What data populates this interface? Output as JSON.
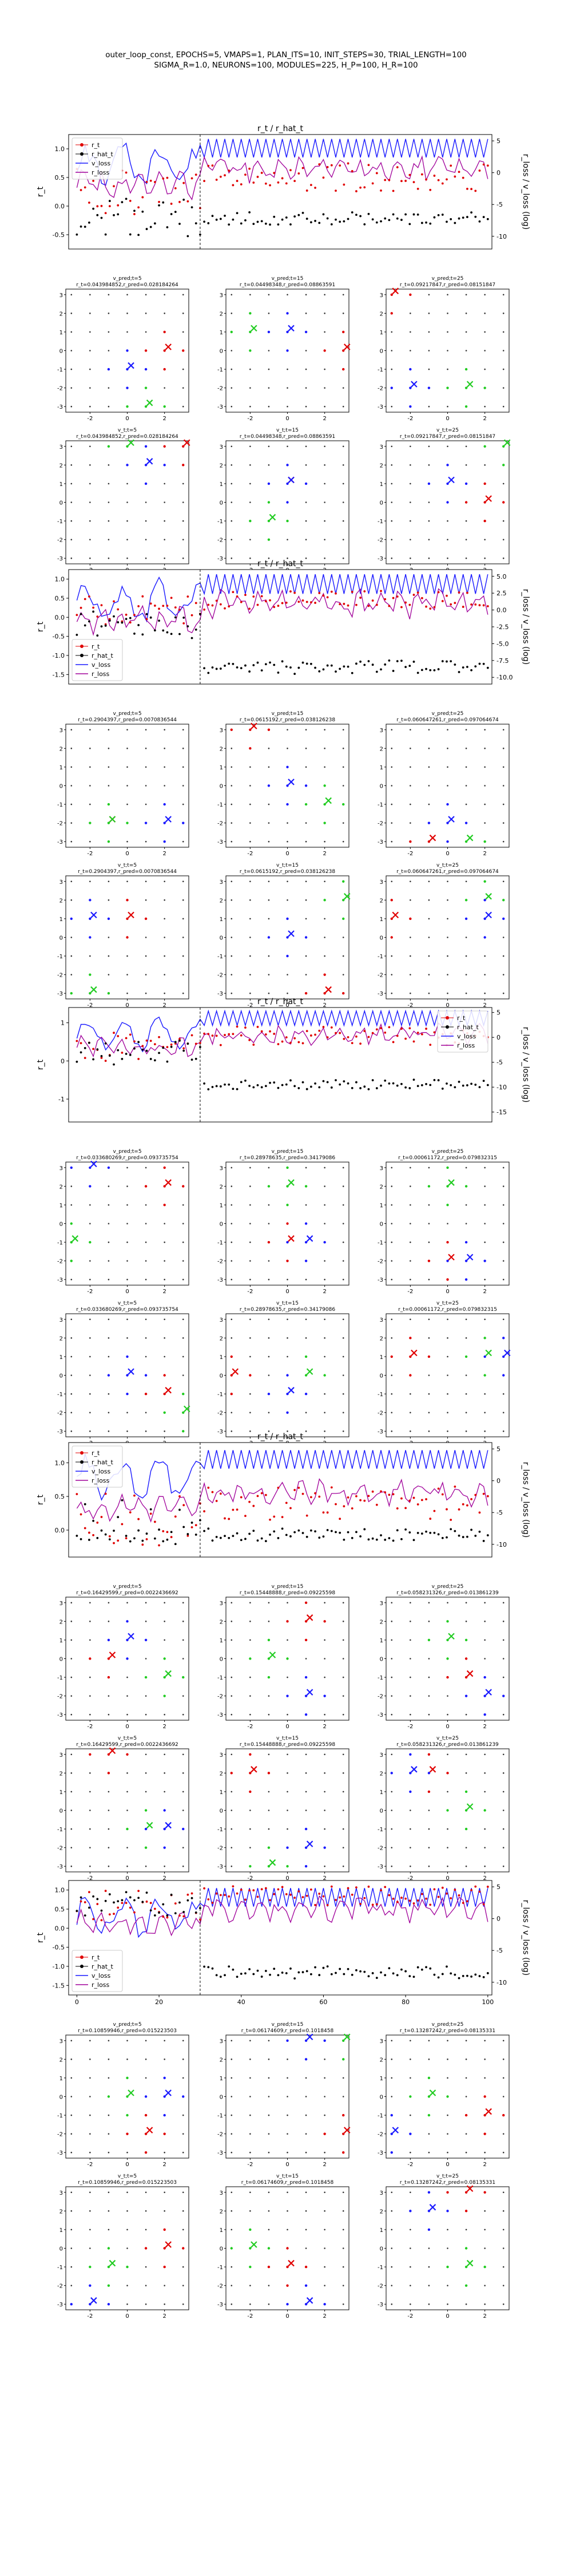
{
  "figure": {
    "title_line1": "outer_loop_const, EPOCHS=5, VMAPS=1, PLAN_ITS=10, INIT_STEPS=30, TRIAL_LENGTH=100",
    "title_line2": "SIGMA_R=1.0, NEURONS=100, MODULES=225, H_P=100, H_R=100"
  },
  "colors": {
    "r_t": "#e00000",
    "r_hat_t": "#000000",
    "v_loss": "#1a1aff",
    "r_loss": "#a0009a",
    "green": "#22cc22",
    "red": "#e00000",
    "blue": "#1a1aff",
    "grid_dot": "#333333"
  },
  "chart_data": [
    {
      "type": "line",
      "title": "r_t / r_hat_t",
      "ylabel_left": "r_t",
      "ylabel_right": "r_loss / v_loss (log)",
      "yticks_left": [
        "1.0",
        "0.5",
        "0.0",
        "-0.5"
      ],
      "yticks_right": [
        "5",
        "0",
        "-5",
        "-10"
      ],
      "ylim_left": [
        -0.75,
        1.25
      ],
      "ylim_right": [
        -12,
        6
      ],
      "xlim": [
        -2,
        101
      ],
      "vline_x": 30,
      "legend": [
        "r_t",
        "r_hat_t",
        "v_loss",
        "r_loss"
      ],
      "legend_position": "upper-left",
      "seed": 11,
      "rt_level": 0.35,
      "rhat_level": -0.2,
      "rhat_post": -7.2,
      "vloss_level": 4.0,
      "rloss_level": 0.6,
      "xticks": [],
      "grids": [
        {
          "subtitles": [
            "v_pred;t=5",
            "v_pred;t=15",
            "v_pred;t=25"
          ],
          "captions": [
            "r_t=0.043984852,r_pred=0.028184264",
            "r_t=0.04498348,r_pred=0.08863591",
            "r_t=0.09217847,r_pred=0.08151847"
          ],
          "seed": 21
        },
        {
          "subtitles": [
            "v_t;t=5",
            "v_t;t=15",
            "v_t;t=25"
          ],
          "captions": [
            "r_t=0.043984852,r_pred=0.028184264",
            "r_t=0.04498348,r_pred=0.08863591",
            "r_t=0.09217847,r_pred=0.08151847"
          ],
          "seed": 22
        }
      ]
    },
    {
      "type": "line",
      "title": "r_t / r_hat_t",
      "ylabel_left": "r_t",
      "ylabel_right": "r_loss / v_loss (log)",
      "yticks_left": [
        "1.0",
        "0.5",
        "0.0",
        "-0.5",
        "-1.0",
        "-1.5"
      ],
      "yticks_right": [
        "5.0",
        "2.5",
        "0.0",
        "-2.5",
        "-5.0",
        "-7.5",
        "-10.0"
      ],
      "ylim_left": [
        -1.75,
        1.25
      ],
      "ylim_right": [
        -11,
        6
      ],
      "xlim": [
        -2,
        101
      ],
      "vline_x": 30,
      "legend": [
        "r_t",
        "r_hat_t",
        "v_loss",
        "r_loss"
      ],
      "legend_position": "lower-left",
      "seed": 31,
      "rt_level": 0.3,
      "rhat_level": -0.2,
      "rhat_post": -8.5,
      "vloss_level": 4.0,
      "rloss_level": 1.0,
      "xticks": [],
      "grids": [
        {
          "subtitles": [
            "v_pred;t=5",
            "v_pred;t=15",
            "v_pred;t=25"
          ],
          "captions": [
            "r_t=0.2904397,r_pred=0.0070836544",
            "r_t=0.0615192,r_pred=0.038126238",
            "r_t=0.060647261,r_pred=0.097064674"
          ],
          "seed": 41
        },
        {
          "subtitles": [
            "v_t;t=5",
            "v_t;t=15",
            "v_t;t=25"
          ],
          "captions": [
            "r_t=0.2904397,r_pred=0.0070836544",
            "r_t=0.0615192,r_pred=0.038126238",
            "r_t=0.060647261,r_pred=0.097064674"
          ],
          "seed": 42
        }
      ]
    },
    {
      "type": "line",
      "title": "r_t / r_hat_t",
      "ylabel_left": "r_t",
      "ylabel_right": "r_loss / v_loss (log)",
      "yticks_left": [
        "1",
        "0",
        "-1"
      ],
      "yticks_right": [
        "5",
        "0",
        "-5",
        "-10",
        "-15"
      ],
      "ylim_left": [
        -1.6,
        1.4
      ],
      "ylim_right": [
        -17,
        6
      ],
      "xlim": [
        -2,
        101
      ],
      "vline_x": 30,
      "legend": [
        "r_t",
        "r_hat_t",
        "v_loss",
        "r_loss"
      ],
      "legend_position": "upper-right",
      "seed": 51,
      "rt_level": 0.5,
      "rhat_level": 0.2,
      "rhat_post": -9.5,
      "vloss_level": 4.0,
      "rloss_level": 0.5,
      "xticks": [],
      "grids": [
        {
          "subtitles": [
            "v_pred;t=5",
            "v_pred;t=15",
            "v_pred;t=25"
          ],
          "captions": [
            "r_t=0.033680269,r_pred=0.093735754",
            "r_t=0.28978635,r_pred=0.34179086",
            "r_t=0.00061172,r_pred=0.079832315"
          ],
          "seed": 61
        },
        {
          "subtitles": [
            "v_t;t=5",
            "v_t;t=15",
            "v_t;t=25"
          ],
          "captions": [
            "r_t=0.033680269,r_pred=0.093735754",
            "r_t=0.28978635,r_pred=0.34179086",
            "r_t=0.00061172,r_pred=0.079832315"
          ],
          "seed": 62
        }
      ]
    },
    {
      "type": "line",
      "title": "r_t / r_hat_t",
      "ylabel_left": "r_t",
      "ylabel_right": "r_loss / v_loss (log)",
      "yticks_left": [
        "1.0",
        "0.5",
        "0.0"
      ],
      "yticks_right": [
        "5",
        "0",
        "-5",
        "-10"
      ],
      "ylim_left": [
        -0.4,
        1.3
      ],
      "ylim_right": [
        -12,
        6
      ],
      "xlim": [
        -2,
        101
      ],
      "vline_x": 30,
      "legend": [
        "r_t",
        "r_hat_t",
        "v_loss",
        "r_loss"
      ],
      "legend_position": "upper-left",
      "seed": 71,
      "rt_level": 0.25,
      "rhat_level": 0.1,
      "rhat_post": -8.5,
      "vloss_level": 3.5,
      "rloss_level": -2.0,
      "xticks": [],
      "grids": [
        {
          "subtitles": [
            "v_pred;t=5",
            "v_pred;t=15",
            "v_pred;t=25"
          ],
          "captions": [
            "r_t=0.16429599,r_pred=0.0022436692",
            "r_t=0.15448888,r_pred=0.09225598",
            "r_t=0.058231326,r_pred=0.013861239"
          ],
          "seed": 81
        },
        {
          "subtitles": [
            "v_t;t=5",
            "v_t;t=15",
            "v_t;t=25"
          ],
          "captions": [
            "r_t=0.16429599,r_pred=0.0022436692",
            "r_t=0.15448888,r_pred=0.09225598",
            "r_t=0.058231326,r_pred=0.013861239"
          ],
          "seed": 82
        }
      ]
    },
    {
      "type": "line",
      "title": "",
      "ylabel_left": "r_t",
      "ylabel_right": "r_loss / v_loss (log)",
      "yticks_left": [
        "1.0",
        "0.5",
        "0.0",
        "-0.5",
        "-1.0",
        "-1.5"
      ],
      "yticks_right": [
        "5",
        "0",
        "-5",
        "-10"
      ],
      "ylim_left": [
        -1.75,
        1.25
      ],
      "ylim_right": [
        -12,
        6
      ],
      "xlim": [
        -2,
        101
      ],
      "vline_x": 30,
      "legend": [
        "r_t",
        "r_hat_t",
        "v_loss",
        "r_loss"
      ],
      "legend_position": "lower-left",
      "seed": 91,
      "rt_level": 0.7,
      "rhat_level": 0.6,
      "rhat_post": -8.5,
      "vloss_level": 3.5,
      "rloss_level": 1.5,
      "xticks": [
        "0",
        "20",
        "40",
        "60",
        "80",
        "100"
      ],
      "grids": [
        {
          "subtitles": [
            "v_pred;t=5",
            "v_pred;t=15",
            "v_pred;t=25"
          ],
          "captions": [
            "r_t=0.10859946,r_pred=0.015223503",
            "r_t=0.06174609,r_pred=0.1018458",
            "r_t=0.13287242,r_pred=0.08135331"
          ],
          "seed": 101
        },
        {
          "subtitles": [
            "v_t;t=5",
            "v_t;t=15",
            "v_t;t=25"
          ],
          "captions": [
            "r_t=0.10859946,r_pred=0.015223503",
            "r_t=0.06174609,r_pred=0.1018458",
            "r_t=0.13287242,r_pred=0.08135331"
          ],
          "seed": 102
        }
      ]
    }
  ]
}
